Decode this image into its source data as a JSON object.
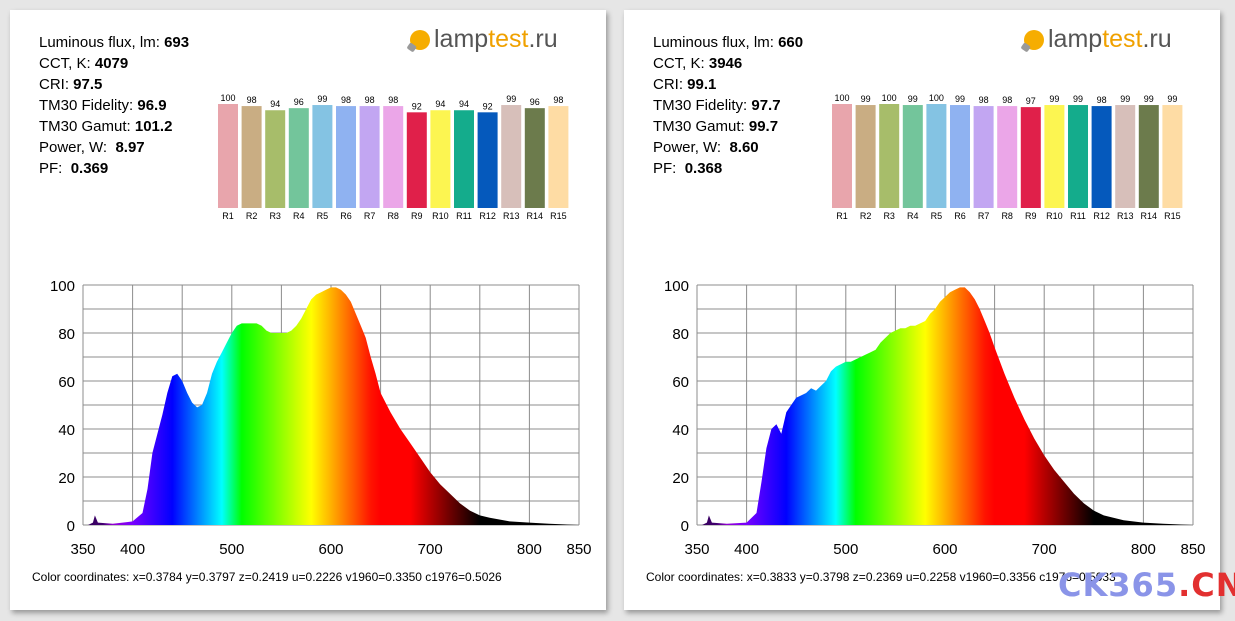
{
  "logo": {
    "part1": "lamp",
    "part2": "test",
    "part3": ".ru"
  },
  "watermark": {
    "part1": "CK365",
    "part2": ".CN"
  },
  "cri_colors": [
    "#e8a5ac",
    "#c9ad83",
    "#a7bd6a",
    "#73c59b",
    "#84c3e3",
    "#8fb2f1",
    "#c2a6f2",
    "#eba6e8",
    "#e0204a",
    "#fcf551",
    "#14ac8c",
    "#0559bc",
    "#d7bfba",
    "#6c7b4c",
    "#fedca4"
  ],
  "panels": [
    {
      "metrics": {
        "flux_label": "Luminous flux, lm:",
        "flux_value": "693",
        "cct_label": "CCT, K:",
        "cct_value": "4079",
        "cri_label": "CRI:",
        "cri_value": "97.5",
        "fidelity_label": "TM30 Fidelity:",
        "fidelity_value": "96.9",
        "gamut_label": "TM30 Gamut:",
        "gamut_value": "101.2",
        "power_label": "Power, W:",
        "power_value": "8.97",
        "pf_label": "PF:",
        "pf_value": "0.369"
      },
      "coords": "Color coordinates: x=0.3784 y=0.3797 z=0.2419 u=0.2226 v1960=0.3350 c1976=0.5026"
    },
    {
      "metrics": {
        "flux_label": "Luminous flux, lm:",
        "flux_value": "660",
        "cct_label": "CCT, K:",
        "cct_value": "3946",
        "cri_label": "CRI:",
        "cri_value": "99.1",
        "fidelity_label": "TM30 Fidelity:",
        "fidelity_value": "97.7",
        "gamut_label": "TM30 Gamut:",
        "gamut_value": "99.7",
        "power_label": "Power, W:",
        "power_value": "8.60",
        "pf_label": "PF:",
        "pf_value": "0.368"
      },
      "coords": "Color coordinates: x=0.3833 y=0.3798 z=0.2369 u=0.2258 v1960=0.3356 c1976=0.5033"
    }
  ],
  "chart_data": [
    {
      "type": "bar",
      "categories": [
        "R1",
        "R2",
        "R3",
        "R4",
        "R5",
        "R6",
        "R7",
        "R8",
        "R9",
        "R10",
        "R11",
        "R12",
        "R13",
        "R14",
        "R15"
      ],
      "values": [
        100,
        98,
        94,
        96,
        99,
        98,
        98,
        98,
        92,
        94,
        94,
        92,
        99,
        96,
        98
      ],
      "ylim": [
        0,
        100
      ]
    },
    {
      "type": "area",
      "x": [
        350,
        355,
        360,
        362,
        365,
        380,
        400,
        410,
        415,
        420,
        425,
        430,
        435,
        440,
        445,
        450,
        455,
        460,
        465,
        470,
        475,
        480,
        485,
        490,
        495,
        500,
        505,
        510,
        515,
        520,
        525,
        530,
        535,
        540,
        545,
        550,
        555,
        560,
        565,
        570,
        575,
        580,
        585,
        590,
        595,
        600,
        605,
        610,
        615,
        620,
        625,
        630,
        635,
        640,
        645,
        650,
        660,
        670,
        680,
        690,
        700,
        710,
        720,
        730,
        740,
        750,
        760,
        780,
        800,
        820,
        850
      ],
      "y": [
        0,
        0,
        1,
        4,
        1,
        0.5,
        1.5,
        5,
        15,
        30,
        38,
        46,
        55,
        62,
        63,
        60,
        55,
        51,
        49,
        50,
        55,
        63,
        68,
        72,
        76,
        80,
        83,
        84,
        84,
        84,
        84,
        83,
        81,
        80,
        80,
        80,
        80,
        81,
        83,
        86,
        90,
        94,
        96,
        97,
        98,
        99,
        99,
        98,
        96,
        93,
        88,
        83,
        78,
        70,
        63,
        55,
        47,
        40,
        34,
        28,
        22,
        17,
        13,
        9,
        6,
        4,
        3,
        1.5,
        1,
        0.5,
        0
      ],
      "xlim": [
        350,
        850
      ],
      "ylim": [
        0,
        100
      ],
      "xticks": [
        350,
        400,
        500,
        600,
        700,
        800,
        850
      ],
      "yticks": [
        0,
        20,
        40,
        60,
        80,
        100
      ]
    },
    {
      "type": "bar",
      "categories": [
        "R1",
        "R2",
        "R3",
        "R4",
        "R5",
        "R6",
        "R7",
        "R8",
        "R9",
        "R10",
        "R11",
        "R12",
        "R13",
        "R14",
        "R15"
      ],
      "values": [
        100,
        99,
        100,
        99,
        100,
        99,
        98,
        98,
        97,
        99,
        99,
        98,
        99,
        99,
        99
      ],
      "ylim": [
        0,
        100
      ]
    },
    {
      "type": "area",
      "x": [
        350,
        355,
        360,
        362,
        365,
        380,
        400,
        410,
        415,
        420,
        425,
        430,
        435,
        440,
        445,
        450,
        455,
        460,
        465,
        470,
        475,
        480,
        485,
        490,
        495,
        500,
        505,
        510,
        515,
        520,
        525,
        530,
        535,
        540,
        545,
        550,
        555,
        560,
        565,
        570,
        575,
        580,
        585,
        590,
        595,
        600,
        605,
        610,
        615,
        620,
        625,
        630,
        635,
        640,
        645,
        650,
        660,
        670,
        680,
        690,
        700,
        710,
        720,
        730,
        740,
        750,
        760,
        780,
        800,
        820,
        850
      ],
      "y": [
        0,
        0,
        1,
        4,
        1,
        0.5,
        1,
        5,
        18,
        32,
        40,
        42,
        38,
        47,
        50,
        53,
        54,
        55,
        57,
        56,
        58,
        60,
        64,
        66,
        67,
        68,
        68,
        69,
        70,
        71,
        72,
        73,
        76,
        78,
        80,
        81,
        82,
        82,
        83,
        83,
        84,
        85,
        88,
        90,
        93,
        95,
        97,
        98,
        99,
        99,
        97,
        94,
        90,
        85,
        80,
        74,
        63,
        53,
        44,
        36,
        29,
        23,
        18,
        13,
        9,
        6,
        4,
        2,
        1,
        0.5,
        0
      ],
      "xlim": [
        350,
        850
      ],
      "ylim": [
        0,
        100
      ],
      "xticks": [
        350,
        400,
        500,
        600,
        700,
        800,
        850
      ],
      "yticks": [
        0,
        20,
        40,
        60,
        80,
        100
      ]
    }
  ]
}
